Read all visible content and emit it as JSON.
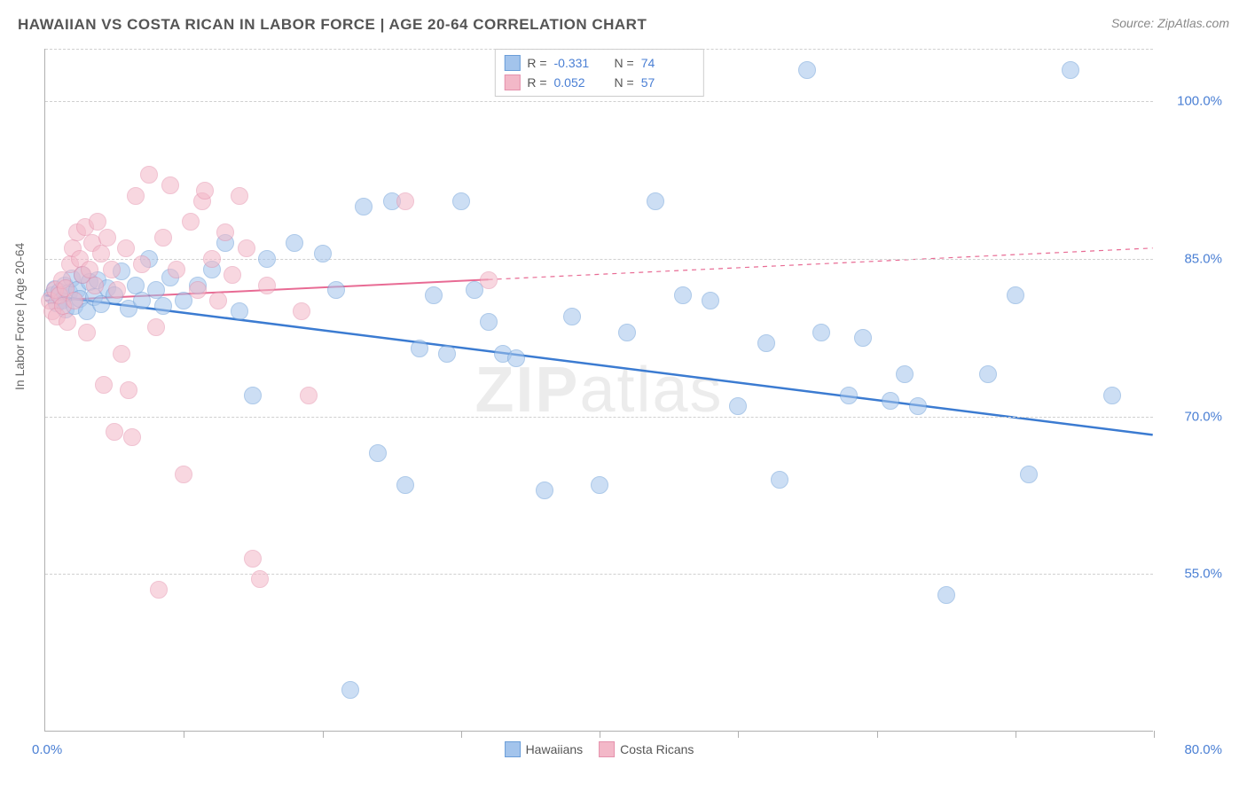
{
  "title": "HAWAIIAN VS COSTA RICAN IN LABOR FORCE | AGE 20-64 CORRELATION CHART",
  "source": "Source: ZipAtlas.com",
  "ylabel": "In Labor Force | Age 20-64",
  "watermark_bold": "ZIP",
  "watermark_rest": "atlas",
  "chart": {
    "type": "scatter",
    "xlim": [
      0,
      80
    ],
    "ylim": [
      40,
      105
    ],
    "y_ticks": [
      55.0,
      70.0,
      85.0,
      100.0
    ],
    "y_tick_labels": [
      "55.0%",
      "70.0%",
      "85.0%",
      "100.0%"
    ],
    "x_ticks": [
      10,
      20,
      30,
      40,
      50,
      60,
      70,
      80
    ],
    "x_origin_label": "0.0%",
    "x_max_label": "80.0%",
    "background_color": "#ffffff",
    "grid_color": "#d0d0d0",
    "axis_color": "#b0b0b0",
    "marker_radius": 10,
    "marker_opacity": 0.55
  },
  "series": [
    {
      "name": "Hawaiians",
      "color_fill": "#a3c4ec",
      "color_stroke": "#6b9ed8",
      "R": "-0.331",
      "N": "74",
      "trend": {
        "x1": 0,
        "y1": 81.5,
        "x2": 80,
        "y2": 68.2,
        "solid_until_x": 80,
        "color": "#3b7bd1",
        "width": 2.5
      },
      "points": [
        [
          0.5,
          81.5
        ],
        [
          0.7,
          82.1
        ],
        [
          0.8,
          80.8
        ],
        [
          1.0,
          81.9
        ],
        [
          1.2,
          81.0
        ],
        [
          1.4,
          82.5
        ],
        [
          1.5,
          80.2
        ],
        [
          1.7,
          81.8
        ],
        [
          1.9,
          83.1
        ],
        [
          2.1,
          80.5
        ],
        [
          2.3,
          82.0
        ],
        [
          2.5,
          81.2
        ],
        [
          2.7,
          83.5
        ],
        [
          3.0,
          80.0
        ],
        [
          3.2,
          82.8
        ],
        [
          3.5,
          81.4
        ],
        [
          3.8,
          83.0
        ],
        [
          4.0,
          80.7
        ],
        [
          4.5,
          82.2
        ],
        [
          5.0,
          81.5
        ],
        [
          5.5,
          83.8
        ],
        [
          6.0,
          80.3
        ],
        [
          6.5,
          82.5
        ],
        [
          7.0,
          81.0
        ],
        [
          7.5,
          85.0
        ],
        [
          8.0,
          82.0
        ],
        [
          8.5,
          80.5
        ],
        [
          9.0,
          83.2
        ],
        [
          10.0,
          81.0
        ],
        [
          11.0,
          82.5
        ],
        [
          12.0,
          84.0
        ],
        [
          13.0,
          86.5
        ],
        [
          14.0,
          80.0
        ],
        [
          15.0,
          72.0
        ],
        [
          16.0,
          85.0
        ],
        [
          18.0,
          86.5
        ],
        [
          20.0,
          85.5
        ],
        [
          21.0,
          82.0
        ],
        [
          22.0,
          44.0
        ],
        [
          23.0,
          90.0
        ],
        [
          24.0,
          66.5
        ],
        [
          25.0,
          90.5
        ],
        [
          26.0,
          63.5
        ],
        [
          27.0,
          76.5
        ],
        [
          28.0,
          81.5
        ],
        [
          29.0,
          76.0
        ],
        [
          30.0,
          90.5
        ],
        [
          31.0,
          82.0
        ],
        [
          32.0,
          79.0
        ],
        [
          33.0,
          76.0
        ],
        [
          34.0,
          75.5
        ],
        [
          36.0,
          63.0
        ],
        [
          38.0,
          79.5
        ],
        [
          40.0,
          63.5
        ],
        [
          42.0,
          78.0
        ],
        [
          44.0,
          90.5
        ],
        [
          46.0,
          81.5
        ],
        [
          48.0,
          81.0
        ],
        [
          50.0,
          71.0
        ],
        [
          52.0,
          77.0
        ],
        [
          53.0,
          64.0
        ],
        [
          55.0,
          103.0
        ],
        [
          56.0,
          78.0
        ],
        [
          58.0,
          72.0
        ],
        [
          59.0,
          77.5
        ],
        [
          61.0,
          71.5
        ],
        [
          62.0,
          74.0
        ],
        [
          63.0,
          71.0
        ],
        [
          65.0,
          53.0
        ],
        [
          68.0,
          74.0
        ],
        [
          70.0,
          81.5
        ],
        [
          71.0,
          64.5
        ],
        [
          74.0,
          103.0
        ],
        [
          77.0,
          72.0
        ]
      ]
    },
    {
      "name": "Costa Ricans",
      "color_fill": "#f3b8c8",
      "color_stroke": "#e592ad",
      "R": "0.052",
      "N": "57",
      "trend": {
        "x1": 0,
        "y1": 81.0,
        "x2": 80,
        "y2": 86.0,
        "solid_until_x": 32,
        "color": "#e86b94",
        "width": 2
      },
      "points": [
        [
          0.3,
          81.0
        ],
        [
          0.5,
          80.0
        ],
        [
          0.7,
          82.0
        ],
        [
          0.8,
          79.5
        ],
        [
          1.0,
          81.5
        ],
        [
          1.2,
          83.0
        ],
        [
          1.3,
          80.5
        ],
        [
          1.5,
          82.2
        ],
        [
          1.6,
          79.0
        ],
        [
          1.8,
          84.5
        ],
        [
          2.0,
          86.0
        ],
        [
          2.1,
          81.0
        ],
        [
          2.3,
          87.5
        ],
        [
          2.5,
          85.0
        ],
        [
          2.7,
          83.5
        ],
        [
          2.9,
          88.0
        ],
        [
          3.0,
          78.0
        ],
        [
          3.2,
          84.0
        ],
        [
          3.4,
          86.5
        ],
        [
          3.6,
          82.5
        ],
        [
          3.8,
          88.5
        ],
        [
          4.0,
          85.5
        ],
        [
          4.2,
          73.0
        ],
        [
          4.5,
          87.0
        ],
        [
          4.8,
          84.0
        ],
        [
          5.0,
          68.5
        ],
        [
          5.2,
          82.0
        ],
        [
          5.5,
          76.0
        ],
        [
          5.8,
          86.0
        ],
        [
          6.0,
          72.5
        ],
        [
          6.3,
          68.0
        ],
        [
          6.5,
          91.0
        ],
        [
          7.0,
          84.5
        ],
        [
          7.5,
          93.0
        ],
        [
          8.0,
          78.5
        ],
        [
          8.2,
          53.5
        ],
        [
          8.5,
          87.0
        ],
        [
          9.0,
          92.0
        ],
        [
          9.5,
          84.0
        ],
        [
          10.0,
          64.5
        ],
        [
          10.5,
          88.5
        ],
        [
          11.0,
          82.0
        ],
        [
          11.3,
          90.5
        ],
        [
          11.5,
          91.5
        ],
        [
          12.0,
          85.0
        ],
        [
          12.5,
          81.0
        ],
        [
          13.0,
          87.5
        ],
        [
          13.5,
          83.5
        ],
        [
          14.0,
          91.0
        ],
        [
          14.5,
          86.0
        ],
        [
          15.0,
          56.5
        ],
        [
          15.5,
          54.5
        ],
        [
          16.0,
          82.5
        ],
        [
          18.5,
          80.0
        ],
        [
          19.0,
          72.0
        ],
        [
          26.0,
          90.5
        ],
        [
          32.0,
          83.0
        ]
      ]
    }
  ],
  "stats_box": {
    "rows": [
      {
        "swatch_fill": "#a3c4ec",
        "swatch_stroke": "#6b9ed8",
        "R_label": "R =",
        "R": "-0.331",
        "N_label": "N =",
        "N": "74"
      },
      {
        "swatch_fill": "#f3b8c8",
        "swatch_stroke": "#e592ad",
        "R_label": "R =",
        "R": "0.052",
        "N_label": "N =",
        "N": "57"
      }
    ]
  },
  "legend": [
    {
      "swatch_fill": "#a3c4ec",
      "swatch_stroke": "#6b9ed8",
      "label": "Hawaiians"
    },
    {
      "swatch_fill": "#f3b8c8",
      "swatch_stroke": "#e592ad",
      "label": "Costa Ricans"
    }
  ]
}
